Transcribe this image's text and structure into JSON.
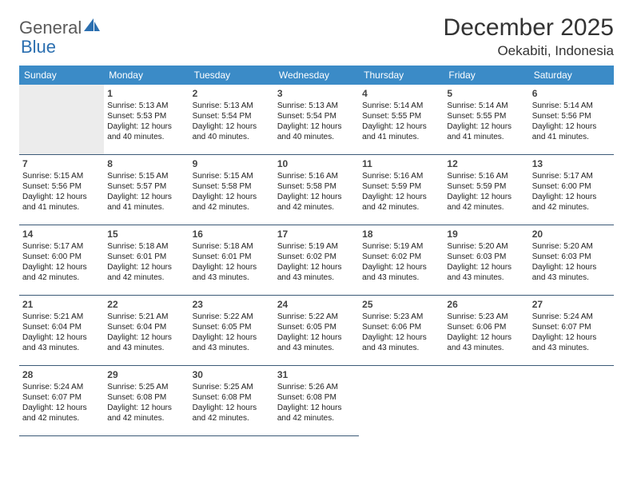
{
  "logo": {
    "text1": "General",
    "text2": "Blue"
  },
  "header": {
    "month_title": "December 2025",
    "location": "Oekabiti, Indonesia"
  },
  "colors": {
    "header_bg": "#3b8bc7",
    "header_text": "#ffffff",
    "rule": "#3b5a77",
    "empty_bg": "#ececec",
    "logo_gray": "#5a5a5a",
    "logo_blue": "#2b6fb0"
  },
  "days_of_week": [
    "Sunday",
    "Monday",
    "Tuesday",
    "Wednesday",
    "Thursday",
    "Friday",
    "Saturday"
  ],
  "leading_blanks": 1,
  "cells": [
    {
      "n": "1",
      "sr": "Sunrise: 5:13 AM",
      "ss": "Sunset: 5:53 PM",
      "d1": "Daylight: 12 hours",
      "d2": "and 40 minutes."
    },
    {
      "n": "2",
      "sr": "Sunrise: 5:13 AM",
      "ss": "Sunset: 5:54 PM",
      "d1": "Daylight: 12 hours",
      "d2": "and 40 minutes."
    },
    {
      "n": "3",
      "sr": "Sunrise: 5:13 AM",
      "ss": "Sunset: 5:54 PM",
      "d1": "Daylight: 12 hours",
      "d2": "and 40 minutes."
    },
    {
      "n": "4",
      "sr": "Sunrise: 5:14 AM",
      "ss": "Sunset: 5:55 PM",
      "d1": "Daylight: 12 hours",
      "d2": "and 41 minutes."
    },
    {
      "n": "5",
      "sr": "Sunrise: 5:14 AM",
      "ss": "Sunset: 5:55 PM",
      "d1": "Daylight: 12 hours",
      "d2": "and 41 minutes."
    },
    {
      "n": "6",
      "sr": "Sunrise: 5:14 AM",
      "ss": "Sunset: 5:56 PM",
      "d1": "Daylight: 12 hours",
      "d2": "and 41 minutes."
    },
    {
      "n": "7",
      "sr": "Sunrise: 5:15 AM",
      "ss": "Sunset: 5:56 PM",
      "d1": "Daylight: 12 hours",
      "d2": "and 41 minutes."
    },
    {
      "n": "8",
      "sr": "Sunrise: 5:15 AM",
      "ss": "Sunset: 5:57 PM",
      "d1": "Daylight: 12 hours",
      "d2": "and 41 minutes."
    },
    {
      "n": "9",
      "sr": "Sunrise: 5:15 AM",
      "ss": "Sunset: 5:58 PM",
      "d1": "Daylight: 12 hours",
      "d2": "and 42 minutes."
    },
    {
      "n": "10",
      "sr": "Sunrise: 5:16 AM",
      "ss": "Sunset: 5:58 PM",
      "d1": "Daylight: 12 hours",
      "d2": "and 42 minutes."
    },
    {
      "n": "11",
      "sr": "Sunrise: 5:16 AM",
      "ss": "Sunset: 5:59 PM",
      "d1": "Daylight: 12 hours",
      "d2": "and 42 minutes."
    },
    {
      "n": "12",
      "sr": "Sunrise: 5:16 AM",
      "ss": "Sunset: 5:59 PM",
      "d1": "Daylight: 12 hours",
      "d2": "and 42 minutes."
    },
    {
      "n": "13",
      "sr": "Sunrise: 5:17 AM",
      "ss": "Sunset: 6:00 PM",
      "d1": "Daylight: 12 hours",
      "d2": "and 42 minutes."
    },
    {
      "n": "14",
      "sr": "Sunrise: 5:17 AM",
      "ss": "Sunset: 6:00 PM",
      "d1": "Daylight: 12 hours",
      "d2": "and 42 minutes."
    },
    {
      "n": "15",
      "sr": "Sunrise: 5:18 AM",
      "ss": "Sunset: 6:01 PM",
      "d1": "Daylight: 12 hours",
      "d2": "and 42 minutes."
    },
    {
      "n": "16",
      "sr": "Sunrise: 5:18 AM",
      "ss": "Sunset: 6:01 PM",
      "d1": "Daylight: 12 hours",
      "d2": "and 43 minutes."
    },
    {
      "n": "17",
      "sr": "Sunrise: 5:19 AM",
      "ss": "Sunset: 6:02 PM",
      "d1": "Daylight: 12 hours",
      "d2": "and 43 minutes."
    },
    {
      "n": "18",
      "sr": "Sunrise: 5:19 AM",
      "ss": "Sunset: 6:02 PM",
      "d1": "Daylight: 12 hours",
      "d2": "and 43 minutes."
    },
    {
      "n": "19",
      "sr": "Sunrise: 5:20 AM",
      "ss": "Sunset: 6:03 PM",
      "d1": "Daylight: 12 hours",
      "d2": "and 43 minutes."
    },
    {
      "n": "20",
      "sr": "Sunrise: 5:20 AM",
      "ss": "Sunset: 6:03 PM",
      "d1": "Daylight: 12 hours",
      "d2": "and 43 minutes."
    },
    {
      "n": "21",
      "sr": "Sunrise: 5:21 AM",
      "ss": "Sunset: 6:04 PM",
      "d1": "Daylight: 12 hours",
      "d2": "and 43 minutes."
    },
    {
      "n": "22",
      "sr": "Sunrise: 5:21 AM",
      "ss": "Sunset: 6:04 PM",
      "d1": "Daylight: 12 hours",
      "d2": "and 43 minutes."
    },
    {
      "n": "23",
      "sr": "Sunrise: 5:22 AM",
      "ss": "Sunset: 6:05 PM",
      "d1": "Daylight: 12 hours",
      "d2": "and 43 minutes."
    },
    {
      "n": "24",
      "sr": "Sunrise: 5:22 AM",
      "ss": "Sunset: 6:05 PM",
      "d1": "Daylight: 12 hours",
      "d2": "and 43 minutes."
    },
    {
      "n": "25",
      "sr": "Sunrise: 5:23 AM",
      "ss": "Sunset: 6:06 PM",
      "d1": "Daylight: 12 hours",
      "d2": "and 43 minutes."
    },
    {
      "n": "26",
      "sr": "Sunrise: 5:23 AM",
      "ss": "Sunset: 6:06 PM",
      "d1": "Daylight: 12 hours",
      "d2": "and 43 minutes."
    },
    {
      "n": "27",
      "sr": "Sunrise: 5:24 AM",
      "ss": "Sunset: 6:07 PM",
      "d1": "Daylight: 12 hours",
      "d2": "and 43 minutes."
    },
    {
      "n": "28",
      "sr": "Sunrise: 5:24 AM",
      "ss": "Sunset: 6:07 PM",
      "d1": "Daylight: 12 hours",
      "d2": "and 42 minutes."
    },
    {
      "n": "29",
      "sr": "Sunrise: 5:25 AM",
      "ss": "Sunset: 6:08 PM",
      "d1": "Daylight: 12 hours",
      "d2": "and 42 minutes."
    },
    {
      "n": "30",
      "sr": "Sunrise: 5:25 AM",
      "ss": "Sunset: 6:08 PM",
      "d1": "Daylight: 12 hours",
      "d2": "and 42 minutes."
    },
    {
      "n": "31",
      "sr": "Sunrise: 5:26 AM",
      "ss": "Sunset: 6:08 PM",
      "d1": "Daylight: 12 hours",
      "d2": "and 42 minutes."
    }
  ]
}
